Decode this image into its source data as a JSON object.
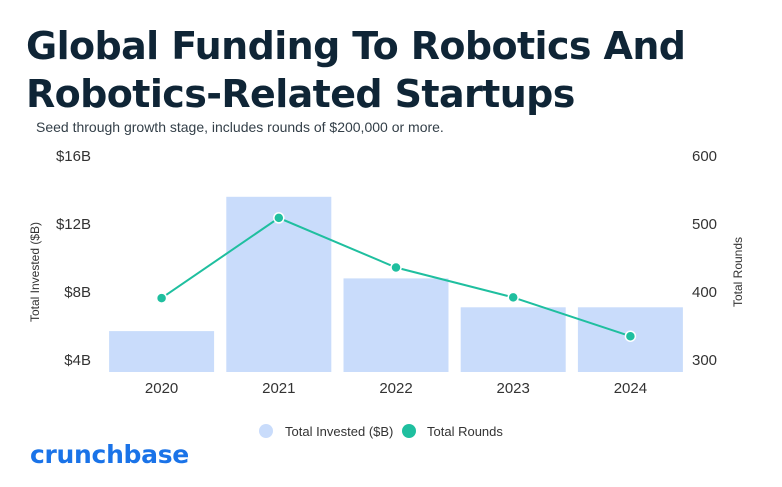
{
  "title_line1": "Global Funding To Robotics And",
  "title_line2": "Robotics-Related Startups",
  "subtitle": "Seed through growth stage, includes rounds of $200,000 or more.",
  "logo_text": "crunchbase",
  "colors": {
    "bar": "#c9dcfb",
    "line": "#1fbf9f",
    "title": "#0f2536",
    "logo": "#1a73e8"
  },
  "chart_data": {
    "type": "bar+line",
    "categories": [
      "2020",
      "2021",
      "2022",
      "2023",
      "2024"
    ],
    "series": [
      {
        "name": "Total Invested ($B)",
        "type": "bar",
        "axis": "left",
        "values": [
          5.7,
          13.6,
          8.8,
          7.1,
          7.1
        ]
      },
      {
        "name": "Total Rounds",
        "type": "line",
        "axis": "right",
        "values": [
          391,
          509,
          436,
          392,
          335
        ]
      }
    ],
    "y_left": {
      "label": "Total Invested ($B)",
      "ticks": [
        "$16B",
        "$12B",
        "$8B",
        "$4B"
      ],
      "tick_values": [
        16,
        12,
        8,
        4
      ],
      "range": [
        4,
        16
      ]
    },
    "y_right": {
      "label": "Total Rounds",
      "ticks": [
        "600",
        "500",
        "400",
        "300"
      ],
      "tick_values": [
        600,
        500,
        400,
        300
      ],
      "range": [
        300,
        600
      ]
    },
    "legend": {
      "position": "bottom",
      "items": [
        "Total Invested ($B)",
        "Total Rounds"
      ]
    },
    "grid": false
  }
}
